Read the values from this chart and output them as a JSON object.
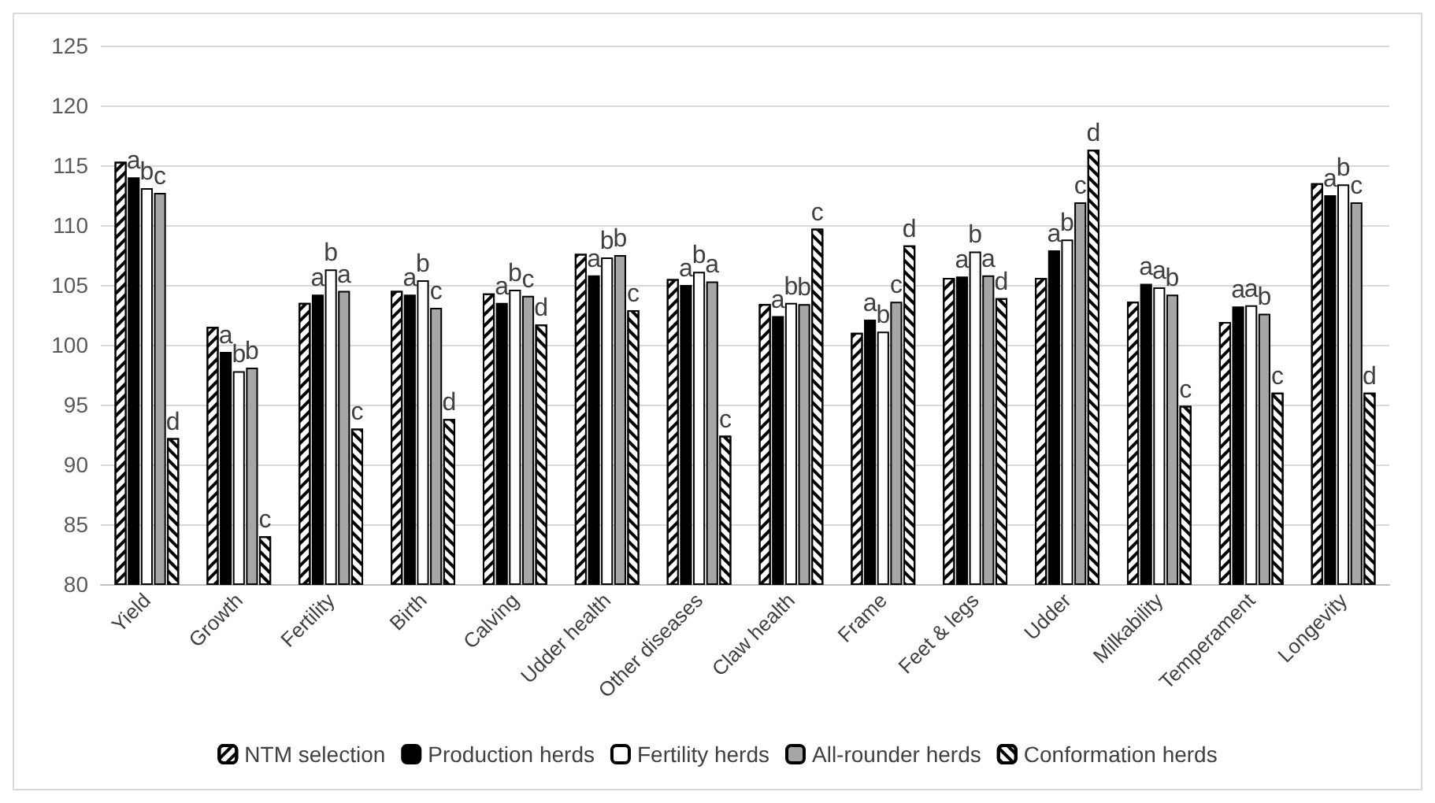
{
  "chart_data": {
    "type": "bar",
    "categories": [
      "Yield",
      "Growth",
      "Fertility",
      "Birth",
      "Calving",
      "Udder health",
      "Other diseases",
      "Claw health",
      "Frame",
      "Feet & legs",
      "Udder",
      "Milkability",
      "Temperament",
      "Longevity"
    ],
    "series": [
      {
        "name": "NTM selection",
        "color": "#ffffff",
        "values": [
          115.3,
          101.5,
          103.5,
          104.5,
          104.3,
          107.6,
          105.5,
          103.4,
          101,
          105.6,
          105.6,
          103.6,
          101.9,
          113.5
        ]
      },
      {
        "name": "Production herds",
        "color": "#000000",
        "values": [
          114,
          99.4,
          104.2,
          104.2,
          103.5,
          105.8,
          105,
          102.4,
          102.1,
          105.7,
          107.9,
          105.1,
          103.2,
          112.5
        ],
        "value_labels": [
          "a",
          "a",
          "a",
          "a",
          "a",
          "a",
          "a",
          "a",
          "a",
          "a",
          "a",
          "a",
          "a",
          "a"
        ]
      },
      {
        "name": "Fertility herds",
        "color": "#ffffff",
        "values": [
          113.1,
          97.8,
          106.3,
          105.4,
          104.6,
          107.3,
          106.1,
          103.5,
          101.1,
          107.8,
          108.8,
          104.8,
          103.3,
          113.4
        ],
        "value_labels": [
          "b",
          "b",
          "b",
          "b",
          "b",
          "b",
          "b",
          "b",
          "b",
          "b",
          "b",
          "a",
          "a",
          "b"
        ]
      },
      {
        "name": "All-rounder herds",
        "color": "#a6a6a6",
        "values": [
          112.7,
          98.1,
          104.5,
          103.1,
          104.1,
          107.5,
          105.3,
          103.4,
          103.6,
          105.8,
          111.9,
          104.2,
          102.6,
          111.9
        ],
        "value_labels": [
          "c",
          "b",
          "a",
          "c",
          "c",
          "b",
          "a",
          "b",
          "c",
          "a",
          "c",
          "b",
          "b",
          "c"
        ]
      },
      {
        "name": "Conformation herds",
        "color": "#ffffff",
        "values": [
          92.2,
          84,
          93,
          93.8,
          101.7,
          102.9,
          92.4,
          109.7,
          108.3,
          103.9,
          116.3,
          94.9,
          96,
          96
        ],
        "value_labels": [
          "d",
          "c",
          "c",
          "d",
          "d",
          "c",
          "c",
          "c",
          "d",
          "d",
          "d",
          "c",
          "c",
          "d"
        ]
      }
    ],
    "ylim": [
      80,
      125
    ],
    "yticks": [
      80,
      85,
      90,
      95,
      100,
      105,
      110,
      115,
      120,
      125
    ],
    "grid": "y",
    "legend": "bottom"
  }
}
